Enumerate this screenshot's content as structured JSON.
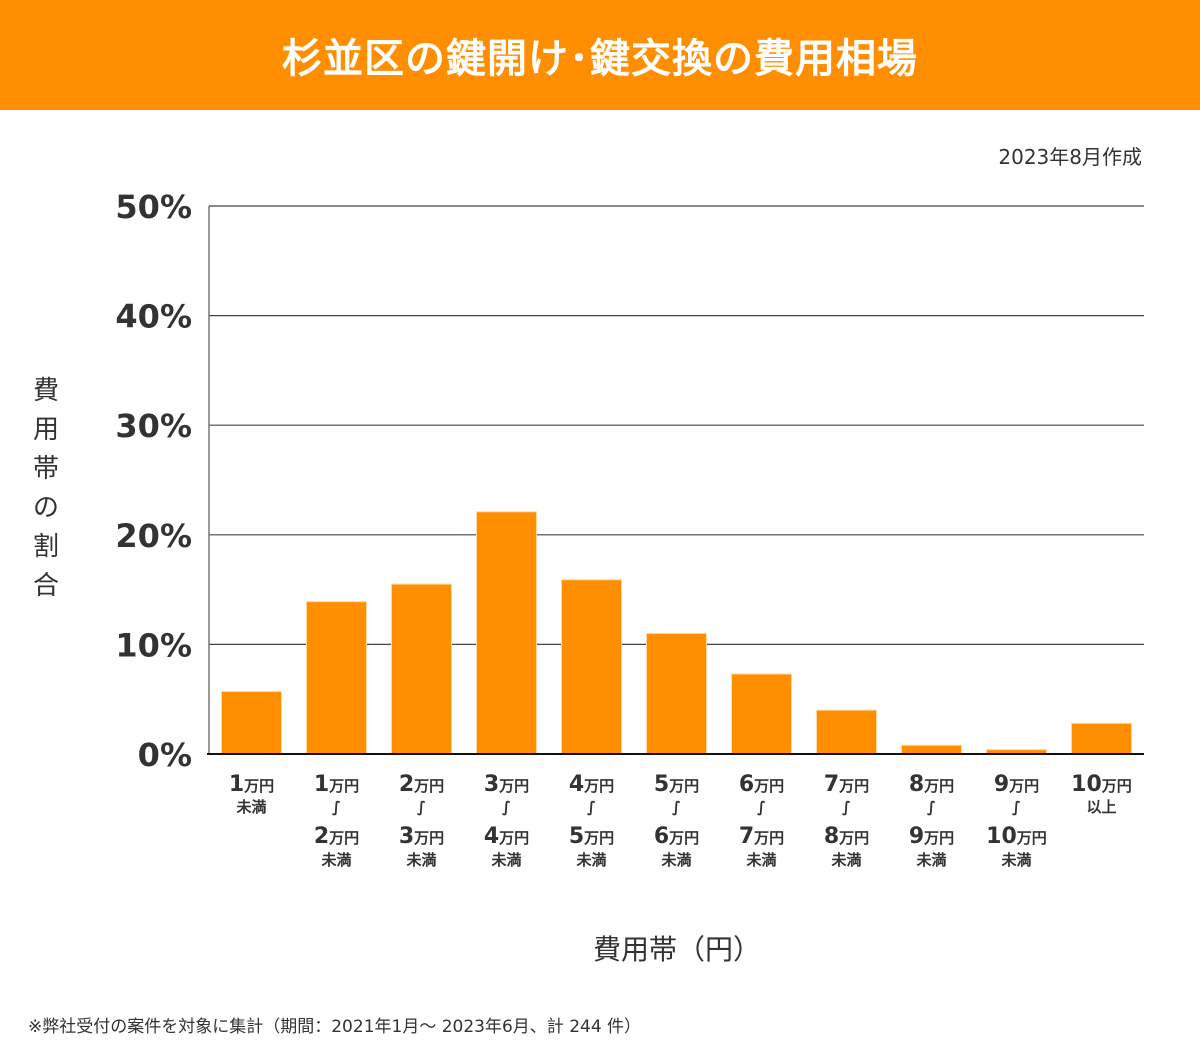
{
  "header": {
    "title": "杉並区の鍵開け･鍵交換の費用相場"
  },
  "created": "2023年8月作成",
  "footnote": "※弊社受付の案件を対象に集計（期間：2021年1月～ 2023年6月、計 244 件）",
  "colors": {
    "bar": "#ff8f00",
    "header": "#ff8f00",
    "grid": "#333333"
  },
  "chart_data": {
    "type": "bar",
    "title": "杉並区の鍵開け･鍵交換の費用相場",
    "xlabel": "費用帯（円）",
    "ylabel": "費用帯の割合",
    "ylim": [
      0,
      50
    ],
    "yticks": [
      "0%",
      "10%",
      "20%",
      "30%",
      "40%",
      "50%"
    ],
    "ytick_values": [
      0,
      10,
      20,
      30,
      40,
      50
    ],
    "grid": true,
    "categories": [
      {
        "from": "1",
        "to": null,
        "suffix": "未満"
      },
      {
        "from": "1",
        "to": "2",
        "suffix": "未満"
      },
      {
        "from": "2",
        "to": "3",
        "suffix": "未満"
      },
      {
        "from": "3",
        "to": "4",
        "suffix": "未満"
      },
      {
        "from": "4",
        "to": "5",
        "suffix": "未満"
      },
      {
        "from": "5",
        "to": "6",
        "suffix": "未満"
      },
      {
        "from": "6",
        "to": "7",
        "suffix": "未満"
      },
      {
        "from": "7",
        "to": "8",
        "suffix": "未満"
      },
      {
        "from": "8",
        "to": "9",
        "suffix": "未満"
      },
      {
        "from": "9",
        "to": "10",
        "suffix": "未満"
      },
      {
        "from": "10",
        "to": null,
        "suffix": "以上"
      }
    ],
    "unit": "万円",
    "range_mark": "～",
    "values": [
      5.7,
      13.9,
      15.5,
      22.1,
      15.9,
      11.0,
      7.3,
      4.0,
      0.8,
      0.4,
      2.8
    ]
  }
}
